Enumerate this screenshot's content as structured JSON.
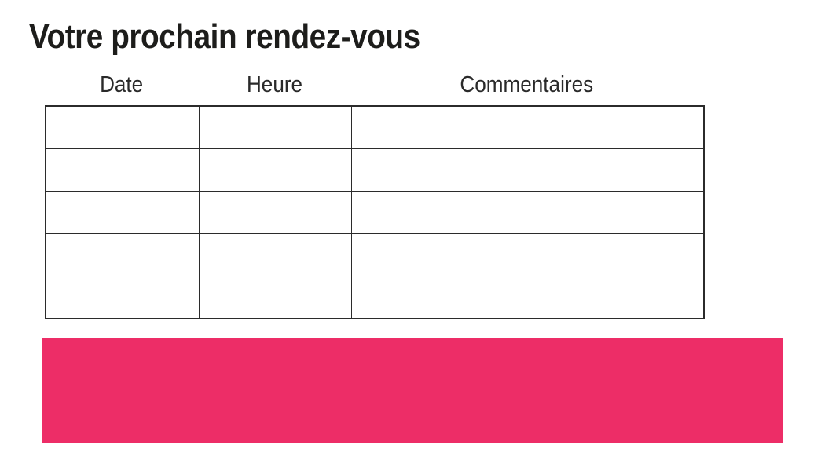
{
  "page": {
    "title": "Votre prochain rendez-vous"
  },
  "table": {
    "columns": [
      "Date",
      "Heure",
      "Commentaires"
    ],
    "rows": [
      [
        "",
        "",
        ""
      ],
      [
        "",
        "",
        ""
      ],
      [
        "",
        "",
        ""
      ],
      [
        "",
        "",
        ""
      ],
      [
        "",
        "",
        ""
      ]
    ]
  },
  "colors": {
    "accent_pink": "#ED2D67",
    "text": "#1D1D1B",
    "table_border": "#2B2B2B"
  }
}
